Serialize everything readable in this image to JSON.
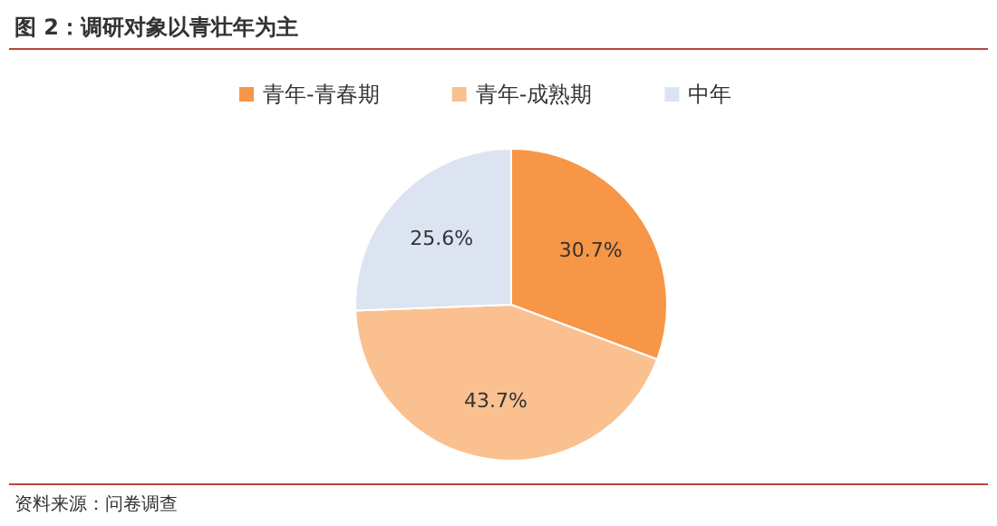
{
  "chart_data": {
    "type": "pie",
    "title": "图 2：调研对象以青壮年为主",
    "categories": [
      "青年-青春期",
      "青年-成熟期",
      "中年"
    ],
    "values": [
      30.7,
      43.7,
      25.6
    ],
    "colors": [
      "#f79646",
      "#fac090",
      "#dce4f2"
    ],
    "value_labels": [
      "30.7%",
      "43.7%",
      "25.6%"
    ],
    "legend": "top",
    "annotations": [
      "资料来源：问卷调查"
    ]
  }
}
